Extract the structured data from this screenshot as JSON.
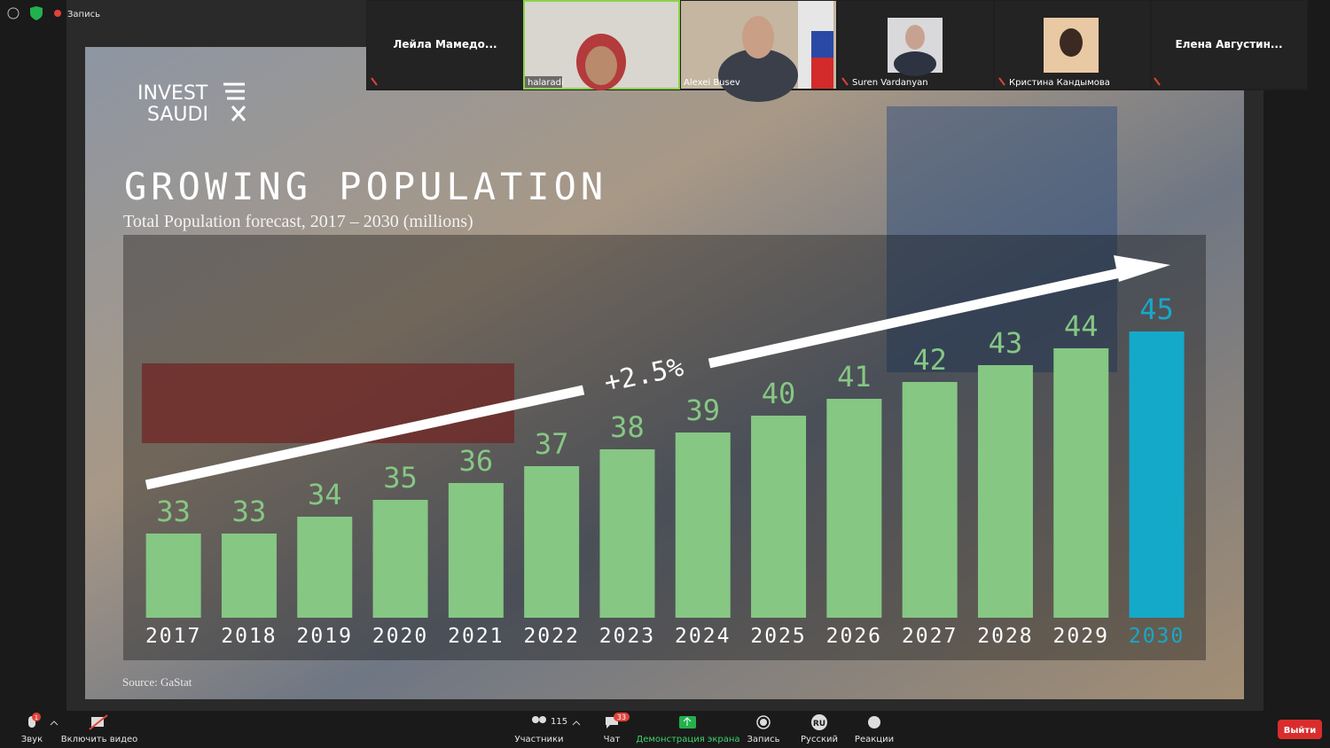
{
  "meeting": {
    "recording_label": "Запись",
    "participants": [
      {
        "name": "Лейла  Мамедо..."
      },
      {
        "name": "halaradi"
      },
      {
        "name": "Alexei Busev"
      },
      {
        "name": "Suren Vardanyan"
      },
      {
        "name": "Кристина Кандымова"
      },
      {
        "name": "Елена  Августин..."
      }
    ],
    "toolbar": {
      "audio": "Звук",
      "audio_badge": 1,
      "video": "Включить видео",
      "participants": "Участники",
      "participant_count": 115,
      "chat": "Чат",
      "chat_badge": 33,
      "share": "Демонстрация экрана",
      "record": "Запись",
      "language_code": "RU",
      "language": "Русский",
      "reactions": "Реакции",
      "leave": "Выйти"
    }
  },
  "slide": {
    "logo_line1": "INVEST",
    "logo_line2": "SAUDI",
    "source": "Source: GaStat"
  },
  "chart_data": {
    "type": "bar",
    "title": "GROWING POPULATION",
    "subtitle": "Total Population forecast, 2017 – 2030 (millions)",
    "annotation": "+2.5%",
    "categories": [
      "2017",
      "2018",
      "2019",
      "2020",
      "2021",
      "2022",
      "2023",
      "2024",
      "2025",
      "2026",
      "2027",
      "2028",
      "2029",
      "2030"
    ],
    "values": [
      33,
      33,
      34,
      35,
      36,
      37,
      38,
      39,
      40,
      41,
      42,
      43,
      44,
      45
    ],
    "colors": [
      "#86c784",
      "#86c784",
      "#86c784",
      "#86c784",
      "#86c784",
      "#86c784",
      "#86c784",
      "#86c784",
      "#86c784",
      "#86c784",
      "#86c784",
      "#86c784",
      "#86c784",
      "#15a9c9"
    ],
    "ylim": [
      28,
      46
    ]
  }
}
